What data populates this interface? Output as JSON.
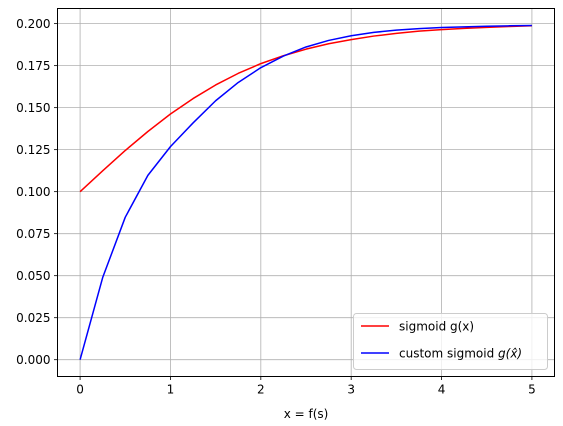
{
  "chart_data": {
    "type": "line",
    "title": "",
    "xlabel": "x = f(s)",
    "ylabel": "",
    "xlim": [
      -0.25,
      5.25
    ],
    "ylim": [
      -0.01,
      0.209
    ],
    "grid": true,
    "legend_position": "lower-right",
    "x_ticks": [
      0,
      1,
      2,
      3,
      4,
      5
    ],
    "x_tick_labels": [
      "0",
      "1",
      "2",
      "3",
      "4",
      "5"
    ],
    "y_ticks": [
      0.0,
      0.025,
      0.05,
      0.075,
      0.1,
      0.125,
      0.15,
      0.175,
      0.2
    ],
    "y_tick_labels": [
      "0.000",
      "0.025",
      "0.050",
      "0.075",
      "0.100",
      "0.125",
      "0.150",
      "0.175",
      "0.200"
    ],
    "x": [
      0,
      0.25,
      0.5,
      0.75,
      1.0,
      1.25,
      1.5,
      1.75,
      2.0,
      2.25,
      2.5,
      2.75,
      3.0,
      3.25,
      3.5,
      3.75,
      4.0,
      4.25,
      4.5,
      4.75,
      5.0
    ],
    "series": [
      {
        "name": "sigmoid g(x)",
        "color": "#ff0000",
        "values": [
          0.1,
          0.1124,
          0.1245,
          0.1358,
          0.1462,
          0.1554,
          0.1635,
          0.1704,
          0.1762,
          0.1809,
          0.1848,
          0.188,
          0.1905,
          0.1926,
          0.1942,
          0.1955,
          0.1964,
          0.1972,
          0.1978,
          0.1983,
          0.1987
        ]
      },
      {
        "name": "custom sigmoid g(x̂)",
        "color": "#0000ff",
        "values": [
          0.0,
          0.0489,
          0.0848,
          0.1097,
          0.1268,
          0.1409,
          0.1541,
          0.165,
          0.1738,
          0.1807,
          0.1861,
          0.19,
          0.1928,
          0.1948,
          0.1961,
          0.197,
          0.1977,
          0.1981,
          0.1984,
          0.1987,
          0.1989
        ]
      }
    ]
  },
  "legend": {
    "label_1": "sigmoid g(x)",
    "label_2_prefix": "custom sigmoid ",
    "label_2_math": "g(x̂)"
  }
}
